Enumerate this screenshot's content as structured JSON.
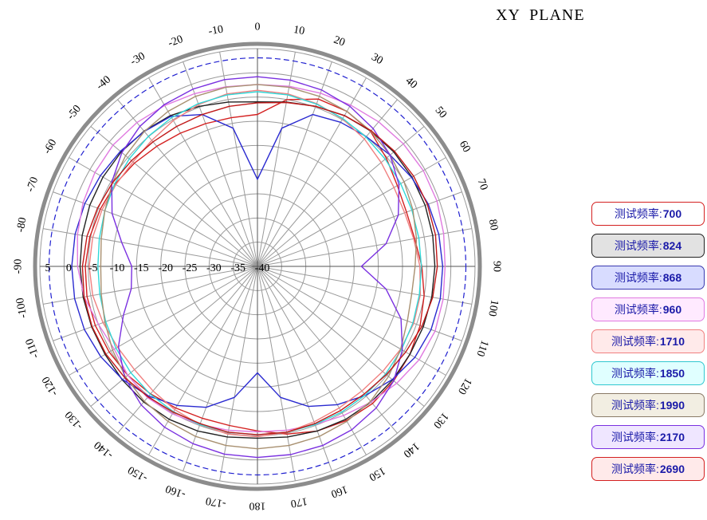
{
  "title": "XY  PLANE",
  "chart_data": {
    "type": "polar-line",
    "title": "XY  PLANE",
    "angle_tick_labels": [
      "0",
      "10",
      "20",
      "30",
      "40",
      "50",
      "60",
      "70",
      "80",
      "90",
      "100",
      "110",
      "120",
      "130",
      "140",
      "150",
      "160",
      "170",
      "180",
      "-170",
      "-160",
      "-150",
      "-140",
      "-130",
      "-120",
      "-110",
      "-100",
      "-90",
      "-80",
      "-70",
      "-60",
      "-50",
      "-40",
      "-30",
      "-20",
      "-10"
    ],
    "radial_tick_labels": [
      "5",
      "0",
      "-5",
      "-10",
      "-15",
      "-20",
      "-25",
      "-30",
      "-35",
      "-40"
    ],
    "radial_range": [
      -40,
      5
    ],
    "series": [
      {
        "name": "测试频率: 700",
        "freq": "700",
        "color": "#d42020",
        "border": "#d42020",
        "fill": "#ffffff",
        "gain": [
          -8.6,
          -5,
          -3.2,
          -3.0,
          -3.6,
          -5.2,
          -6.6,
          -7.2,
          -7.0,
          -6.0,
          -5.0,
          -4.2,
          -3.6,
          -3.2,
          -3.0,
          -3.2,
          -3.8,
          -4.8,
          -6.0,
          -6.6,
          -6.6,
          -6.2,
          -5.6,
          -5.0,
          -4.6,
          -4.3,
          -4.2,
          -4.4,
          -4.8,
          -5.4,
          -6.0,
          -6.8,
          -7.6,
          -8.2,
          -8.6,
          -8.8
        ]
      },
      {
        "name": "测试频率: 824",
        "freq": "824",
        "color": "#222222",
        "border": "#222222",
        "fill": "#e2e2e2",
        "gain": [
          -6.0,
          -5.5,
          -4.8,
          -4.0,
          -3.5,
          -3.2,
          -3.1,
          -3.1,
          -3.2,
          -3.3,
          -3.4,
          -3.5,
          -3.6,
          -3.5,
          -3.4,
          -3.5,
          -3.8,
          -4.2,
          -4.5,
          -4.2,
          -3.8,
          -3.5,
          -3.4,
          -3.5,
          -3.6,
          -3.5,
          -3.4,
          -3.3,
          -3.2,
          -3.1,
          -3.1,
          -3.2,
          -3.5,
          -4.0,
          -4.8,
          -5.5
        ]
      },
      {
        "name": "测试频率: 868",
        "freq": "868",
        "color": "#2a2ad0",
        "border": "#3a3ab0",
        "fill": "#d8dcff",
        "gain": [
          -22,
          -11,
          -6.6,
          -5.6,
          -5.0,
          -4.2,
          -3.2,
          -2.4,
          -1.9,
          -1.7,
          -1.6,
          -1.8,
          -2.4,
          -3.6,
          -5.2,
          -7.0,
          -9.2,
          -12.5,
          -18,
          -12.5,
          -9.0,
          -6.8,
          -5.0,
          -3.6,
          -2.6,
          -1.9,
          -1.6,
          -1.6,
          -1.7,
          -2.0,
          -2.5,
          -3.0,
          -3.6,
          -4.2,
          -6.6,
          -11
        ]
      },
      {
        "name": "测试频率: 960",
        "freq": "960",
        "color": "#e07ae0",
        "border": "#e07ae0",
        "fill": "#ffeaff",
        "gain": [
          -2.4,
          -2.2,
          -1.9,
          -1.5,
          -1.0,
          -0.6,
          -0.4,
          -0.5,
          -0.9,
          -1.2,
          -1.0,
          -0.9,
          -1.4,
          -2.4,
          -3.4,
          -4.4,
          -5.2,
          -5.6,
          -5.8,
          -5.6,
          -5.2,
          -4.8,
          -4.6,
          -5.0,
          -5.8,
          -5.0,
          -3.6,
          -2.8,
          -2.2,
          -1.6,
          -1.2,
          -1.0,
          -1.2,
          -1.6,
          -2.0,
          -2.3
        ]
      },
      {
        "name": "测试频率: 1710",
        "freq": "1710",
        "color": "#f08080",
        "border": "#f08080",
        "fill": "#ffeaea",
        "gain": [
          -3.6,
          -3.8,
          -4.2,
          -4.8,
          -5.6,
          -6.6,
          -7.4,
          -7.6,
          -7.2,
          -6.4,
          -5.8,
          -5.6,
          -5.8,
          -6.2,
          -6.4,
          -6.2,
          -5.8,
          -5.2,
          -4.8,
          -4.8,
          -5.2,
          -5.8,
          -6.4,
          -6.8,
          -6.6,
          -6.0,
          -5.4,
          -5.2,
          -5.4,
          -5.8,
          -6.2,
          -6.4,
          -6.0,
          -5.2,
          -4.4,
          -3.8
        ]
      },
      {
        "name": "测试频率: 1850",
        "freq": "1850",
        "color": "#30d8d8",
        "border": "#30c8d0",
        "fill": "#e0ffff",
        "gain": [
          -3.9,
          -4.0,
          -4.3,
          -4.7,
          -5.1,
          -5.5,
          -5.8,
          -6.0,
          -6.1,
          -6.1,
          -6.0,
          -5.8,
          -5.6,
          -5.4,
          -5.3,
          -5.2,
          -5.2,
          -5.2,
          -5.2,
          -5.2,
          -5.2,
          -5.3,
          -5.5,
          -5.8,
          -6.2,
          -6.6,
          -6.9,
          -7.0,
          -6.8,
          -6.4,
          -5.9,
          -5.4,
          -4.9,
          -4.5,
          -4.2,
          -4.0
        ]
      },
      {
        "name": "测试频率: 1990",
        "freq": "1990",
        "color": "#a89070",
        "border": "#8a7a66",
        "fill": "#f2eee2",
        "gain": [
          -2.4,
          -2.4,
          -2.6,
          -3.0,
          -3.5,
          -4.2,
          -5.0,
          -5.8,
          -6.6,
          -7.4,
          -7.6,
          -7.0,
          -5.8,
          -4.6,
          -3.6,
          -3.0,
          -2.6,
          -2.4,
          -2.3,
          -2.4,
          -2.6,
          -3.0,
          -3.6,
          -4.4,
          -5.4,
          -6.4,
          -7.2,
          -7.6,
          -7.2,
          -6.4,
          -5.4,
          -4.4,
          -3.6,
          -3.0,
          -2.6,
          -2.4
        ]
      },
      {
        "name": "测试频率: 2170",
        "freq": "2170",
        "color": "#7a30e0",
        "border": "#7a30e0",
        "fill": "#efe6ff",
        "gain": [
          -0.8,
          -0.9,
          -1.2,
          -1.8,
          -2.8,
          -4.2,
          -6.2,
          -9.0,
          -13,
          -18.5,
          -13,
          -8.4,
          -5.4,
          -3.2,
          -1.8,
          -1.0,
          -0.6,
          -0.5,
          -0.5,
          -0.6,
          -1.0,
          -1.6,
          -2.6,
          -4.2,
          -6.8,
          -10.5,
          -13.5,
          -14,
          -11.5,
          -8.0,
          -5.2,
          -3.4,
          -2.2,
          -1.4,
          -1.0,
          -0.8
        ]
      },
      {
        "name": "测试频率: 2690",
        "freq": "2690",
        "color": "#c01818",
        "border": "#d42020",
        "fill": "#ffeaea",
        "gain": [
          -6.2,
          -5.6,
          -4.8,
          -4.0,
          -3.4,
          -3.0,
          -2.7,
          -2.6,
          -2.6,
          -2.8,
          -3.2,
          -3.8,
          -4.6,
          -5.2,
          -5.6,
          -5.6,
          -5.4,
          -5.2,
          -5.2,
          -5.2,
          -5.4,
          -5.2,
          -4.8,
          -4.2,
          -3.8,
          -3.6,
          -3.6,
          -3.8,
          -4.2,
          -4.8,
          -5.4,
          -6.0,
          -6.4,
          -6.6,
          -6.6,
          -6.4
        ]
      }
    ]
  }
}
